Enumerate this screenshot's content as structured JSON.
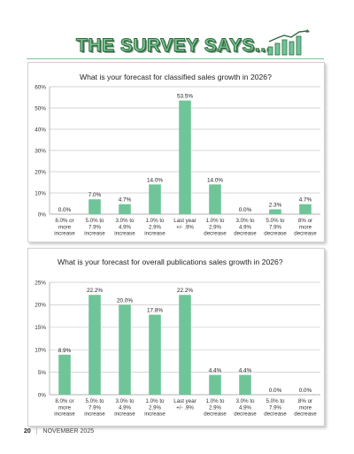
{
  "header": {
    "title": "THE SURVEY SAYS..."
  },
  "footer": {
    "page_number": "20",
    "separator": "|",
    "issue": "NOVEMBER 2025"
  },
  "colors": {
    "bar": "#6fc597",
    "grid": "#c8c8c8",
    "accent": "#79c690"
  },
  "chart_data": [
    {
      "type": "bar",
      "title": "What is your forecast for classified sales growth in 2026?",
      "categories": [
        [
          "8.0% or",
          "more",
          "increase"
        ],
        [
          "5.0% to",
          "7.9%",
          "increase"
        ],
        [
          "3.0% to",
          "4.9%",
          "increase"
        ],
        [
          "1.0% to",
          "2.9%",
          "increase"
        ],
        [
          "Last year",
          "+/- .9%"
        ],
        [
          "1.0% to",
          "2.9%",
          "decrease"
        ],
        [
          "3.0% to",
          "4.9%",
          "decrease"
        ],
        [
          "5.0% to",
          "7.9%",
          "decrease"
        ],
        [
          "8% or",
          "more",
          "decrease"
        ]
      ],
      "values": [
        0.0,
        7.0,
        4.7,
        14.0,
        53.5,
        14.0,
        0.0,
        2.3,
        4.7
      ],
      "value_labels": [
        "0.0%",
        "7.0%",
        "4.7%",
        "14.0%",
        "53.5%",
        "14.0%",
        "0.0%",
        "2.3%",
        "4.7%"
      ],
      "ylim": [
        0,
        60
      ],
      "yticks": [
        0,
        10,
        20,
        30,
        40,
        50,
        60
      ],
      "ytick_labels": [
        "0%",
        "10%",
        "20%",
        "30%",
        "40%",
        "50%",
        "60%"
      ],
      "grid": true
    },
    {
      "type": "bar",
      "title": "What is your forecast for overall publications sales growth in 2026?",
      "categories": [
        [
          "8.0% or",
          "more",
          "increase"
        ],
        [
          "5.0% to",
          "7.9%",
          "increase"
        ],
        [
          "3.0% to",
          "4.9%",
          "increase"
        ],
        [
          "1.0% to",
          "2.9%",
          "increase"
        ],
        [
          "Last year",
          "+/- .9%"
        ],
        [
          "1.0% to",
          "2.9%",
          "decrease"
        ],
        [
          "3.0% to",
          "4.9%",
          "decrease"
        ],
        [
          "5.0% to",
          "7.9%",
          "decrease"
        ],
        [
          "8% or",
          "more",
          "decrease"
        ]
      ],
      "values": [
        8.9,
        22.2,
        20.0,
        17.8,
        22.2,
        4.4,
        4.4,
        0.0,
        0.0
      ],
      "value_labels": [
        "8.9%",
        "22.2%",
        "20.0%",
        "17.8%",
        "22.2%",
        "4.4%",
        "4.4%",
        "0.0%",
        "0.0%"
      ],
      "ylim": [
        0,
        25
      ],
      "yticks": [
        0,
        5,
        10,
        15,
        20,
        25
      ],
      "ytick_labels": [
        "0%",
        "5%",
        "10%",
        "15%",
        "20%",
        "25%"
      ],
      "grid": true
    }
  ]
}
